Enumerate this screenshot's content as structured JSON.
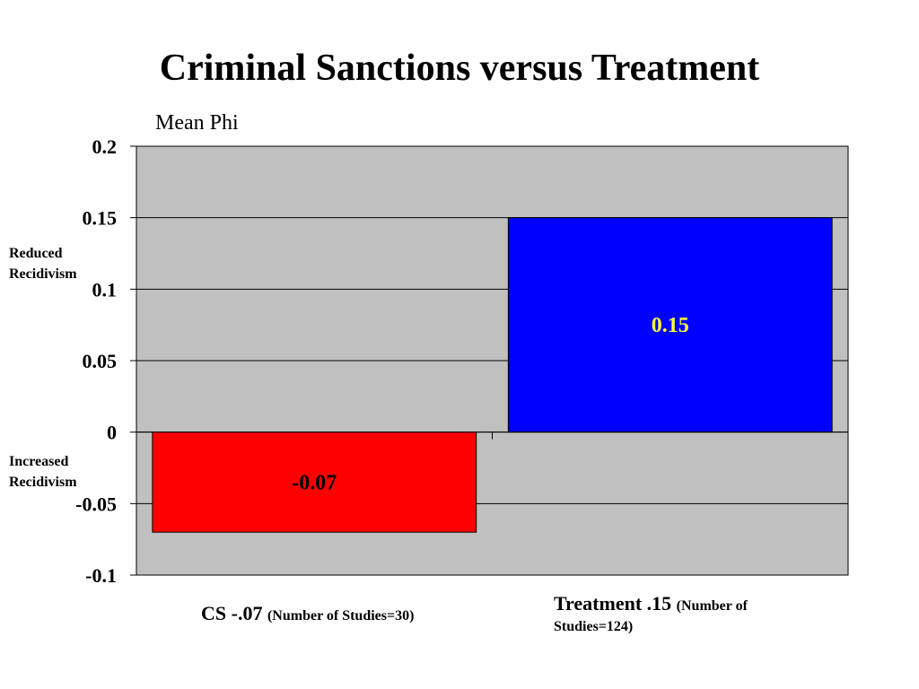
{
  "chart_data": {
    "type": "bar",
    "title": "Criminal Sanctions versus Treatment",
    "ylabel": "Mean Phi",
    "ylim": [
      -0.1,
      0.2
    ],
    "yticks": [
      0.2,
      0.15,
      0.1,
      0.05,
      0,
      -0.05,
      -0.1
    ],
    "ytick_labels": [
      "0.2",
      "0.15",
      "0.1",
      "0.05",
      "0",
      "-0.05",
      "-0.1"
    ],
    "categories": [
      "CS",
      "Treatment"
    ],
    "values": [
      -0.07,
      0.15
    ],
    "data_labels": [
      "-0.07",
      "0.15"
    ],
    "bar_colors": [
      "#ff0000",
      "#0000ff"
    ],
    "data_label_colors": [
      "#000000",
      "#ffff33"
    ],
    "grid": true,
    "plot_background": "#c0c0c0",
    "category_labels": [
      {
        "main": "CS -.07",
        "detail": "(Number of Studies=30)"
      },
      {
        "main": "Treatment .15",
        "detail": "(Number of Studies=124)"
      }
    ],
    "annotations": {
      "reduced": [
        "Reduced",
        "Recidivism"
      ],
      "increased": [
        "Increased",
        "Recidivism"
      ]
    }
  }
}
